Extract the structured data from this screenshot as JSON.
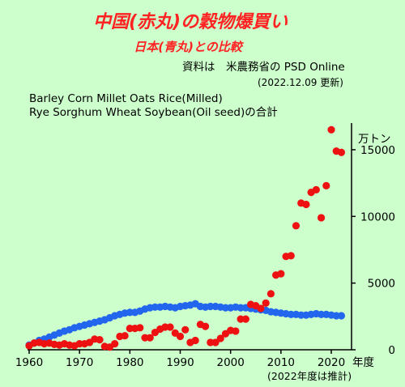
{
  "title": "中国(赤丸)の穀物爆買い",
  "subtitle": "日本(青丸)との比較",
  "source_line1": "資料は　米農務省の PSD Online",
  "source_line2": "(2022.12.09 更新)",
  "desc_line1": "Barley  Corn  Millet  Oats  Rice(Milled)",
  "desc_line2": "Rye  Sorghum  Wheat  Soybean(Oil seed)の合計",
  "colors": {
    "background": "#ccffcc",
    "title": "#ff2222",
    "china": "#ee1111",
    "japan": "#2266ee",
    "axis": "#000000",
    "text": "#000000"
  },
  "chart_data": {
    "type": "scatter",
    "xlim": [
      1960,
      2022
    ],
    "ylim": [
      0,
      17000
    ],
    "y_unit": "万トン",
    "x_unit": "年度",
    "x_ticks": [
      1960,
      1970,
      1980,
      1990,
      2000,
      2010,
      2020
    ],
    "y_ticks": [
      0,
      5000,
      10000,
      15000
    ],
    "y_tick_labels": [
      "0",
      "5000",
      "10000",
      "15000"
    ],
    "x_tick_labels": [
      "1960",
      "1970",
      "1980",
      "1990",
      "2000",
      "2010",
      "2020"
    ],
    "note": "(2022年度は推計)",
    "grid": false,
    "series": [
      {
        "name": "赤丸",
        "color": "#ee1111",
        "x": [
          1960,
          1961,
          1962,
          1963,
          1964,
          1965,
          1966,
          1967,
          1968,
          1969,
          1970,
          1971,
          1972,
          1973,
          1974,
          1975,
          1976,
          1977,
          1978,
          1979,
          1980,
          1981,
          1982,
          1983,
          1984,
          1985,
          1986,
          1987,
          1988,
          1989,
          1990,
          1991,
          1992,
          1993,
          1994,
          1995,
          1996,
          1997,
          1998,
          1999,
          2000,
          2001,
          2002,
          2003,
          2004,
          2005,
          2006,
          2007,
          2008,
          2009,
          2010,
          2011,
          2012,
          2013,
          2014,
          2015,
          2016,
          2017,
          2018,
          2019,
          2020,
          2021,
          2022
        ],
        "values": [
          300,
          500,
          550,
          450,
          500,
          400,
          350,
          450,
          350,
          300,
          450,
          450,
          550,
          800,
          750,
          250,
          200,
          450,
          1000,
          1050,
          1600,
          1600,
          1650,
          900,
          900,
          1300,
          1550,
          1700,
          1700,
          1250,
          1000,
          1500,
          550,
          700,
          1900,
          1750,
          550,
          550,
          850,
          1200,
          1450,
          1400,
          2300,
          2300,
          3400,
          3300,
          3100,
          3500,
          4200,
          5600,
          5700,
          7000,
          7050,
          9300,
          11000,
          10900,
          11800,
          12000,
          9900,
          12300,
          16500,
          14900,
          14800
        ]
      },
      {
        "name": "青丸",
        "color": "#2266ee",
        "x": [
          1960,
          1961,
          1962,
          1963,
          1964,
          1965,
          1966,
          1967,
          1968,
          1969,
          1970,
          1971,
          1972,
          1973,
          1974,
          1975,
          1976,
          1977,
          1978,
          1979,
          1980,
          1981,
          1982,
          1983,
          1984,
          1985,
          1986,
          1987,
          1988,
          1989,
          1990,
          1991,
          1992,
          1993,
          1994,
          1995,
          1996,
          1997,
          1998,
          1999,
          2000,
          2001,
          2002,
          2003,
          2004,
          2005,
          2006,
          2007,
          2008,
          2009,
          2010,
          2011,
          2012,
          2013,
          2014,
          2015,
          2016,
          2017,
          2018,
          2019,
          2020,
          2021,
          2022
        ],
        "values": [
          350,
          500,
          700,
          800,
          950,
          1100,
          1250,
          1400,
          1500,
          1650,
          1750,
          1850,
          1950,
          2050,
          2150,
          2250,
          2400,
          2550,
          2650,
          2750,
          2800,
          2800,
          2900,
          3050,
          3150,
          3200,
          3200,
          3250,
          3200,
          3150,
          3250,
          3300,
          3350,
          3450,
          3250,
          3200,
          3250,
          3250,
          3200,
          3150,
          3150,
          3200,
          3150,
          3150,
          3100,
          3050,
          3000,
          2950,
          2850,
          2800,
          2750,
          2700,
          2650,
          2650,
          2600,
          2600,
          2650,
          2700,
          2650,
          2650,
          2600,
          2550,
          2550
        ]
      }
    ]
  }
}
